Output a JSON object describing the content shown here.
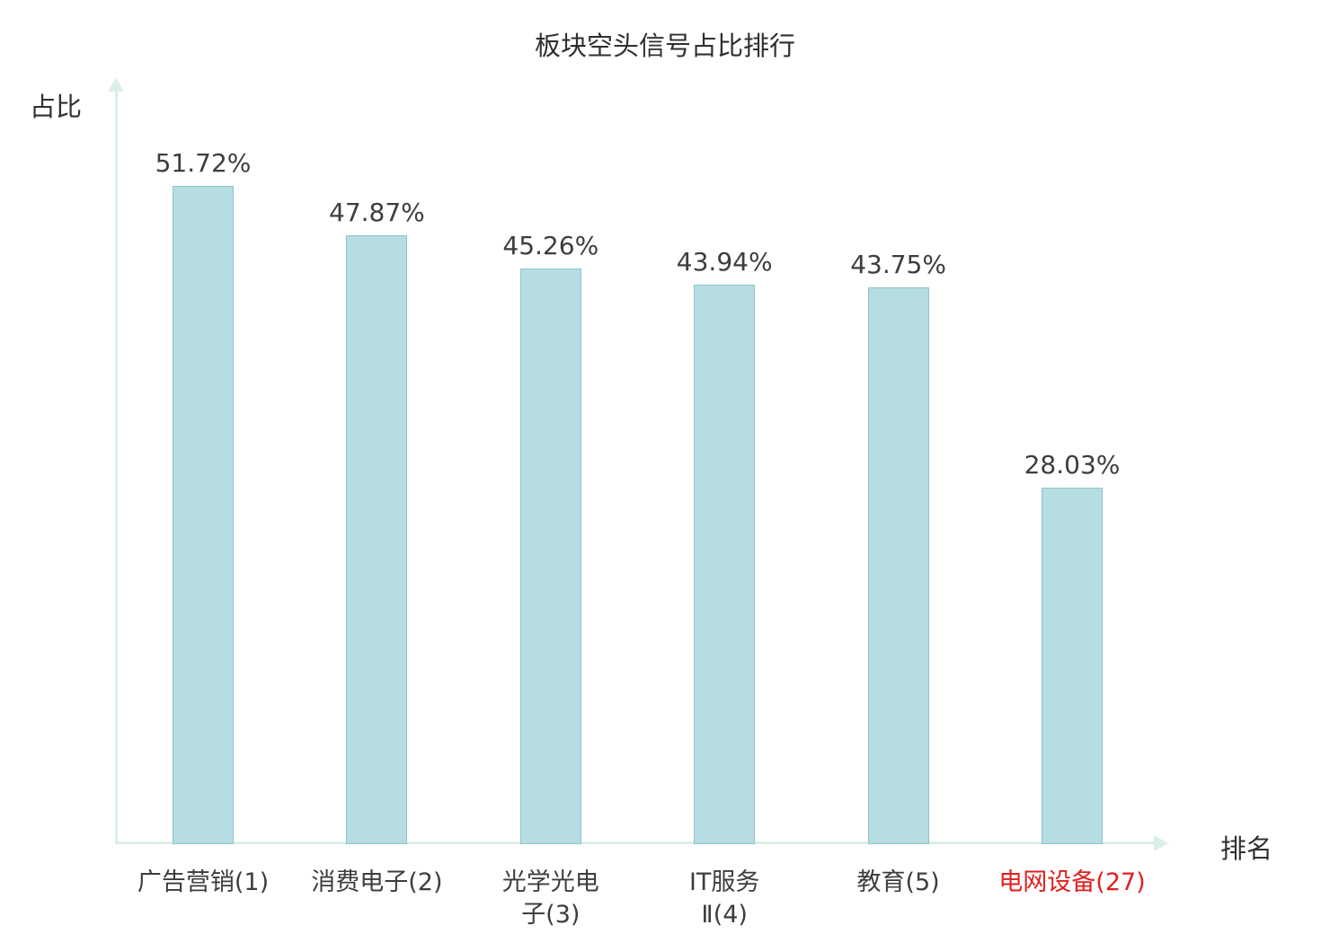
{
  "title": "板块空头信号占比排行",
  "chart_data": {
    "type": "bar",
    "title": "板块空头信号占比排行",
    "xlabel": "排名",
    "ylabel": "占比",
    "categories": [
      "广告营销(1)",
      "消费电子(2)",
      "光学光电子(3)",
      "IT服务Ⅱ(4)",
      "教育(5)",
      "电网设备(27)"
    ],
    "tick_labels": [
      "广告营销(1)",
      "消费电子(2)",
      "光学光电\n子(3)",
      "IT服务\nⅡ(4)",
      "教育(5)",
      "电网设备(27)"
    ],
    "values": [
      51.72,
      47.87,
      45.26,
      43.94,
      43.75,
      28.03
    ],
    "value_labels": [
      "51.72%",
      "47.87%",
      "45.26%",
      "43.94%",
      "43.75%",
      "28.03%"
    ],
    "ylim": [
      0,
      60
    ],
    "grid": false,
    "legend": "none",
    "highlight_index": 5,
    "bar_color": "#b5dde2",
    "bar_border_color": "#8ec4cb",
    "axis_color": "#dcefe7",
    "text_color": "#3d3d3d",
    "highlight_label_color": "#e02020"
  }
}
